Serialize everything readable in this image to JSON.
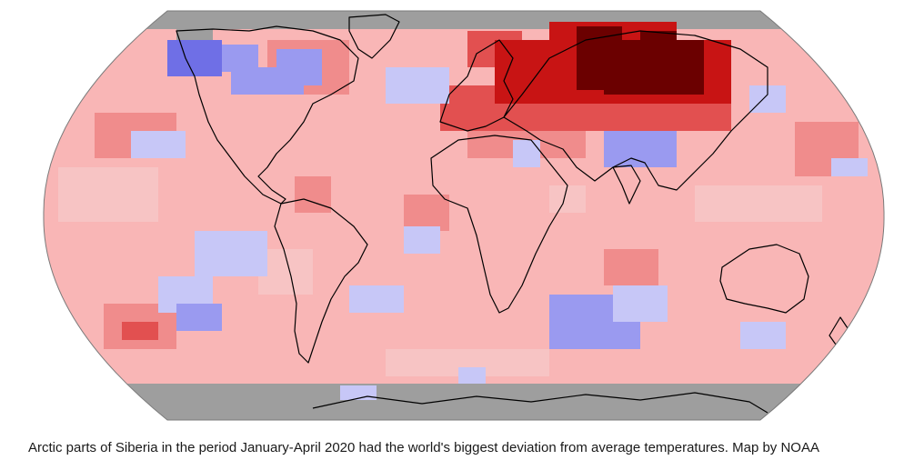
{
  "figure": {
    "caption": "Arctic parts of Siberia in the period January-April 2020 had the world's biggest deviation from average temperatures. Map by NOAA",
    "projection": "Robinson",
    "legend_shown": false,
    "colors": {
      "missing_data": "#9e9e9e",
      "ocean_base": "#f9b6b6",
      "warm_light": "#f7c4c4",
      "warm_medium": "#f08c8c",
      "warm_strong": "#e25050",
      "warm_very_strong": "#c81414",
      "warm_record": "#6b0000",
      "cool_light": "#c7c7f7",
      "cool_medium": "#9a9af0",
      "cool_strong": "#6f6fe6",
      "coastline": "#000000",
      "background": "#ffffff"
    }
  }
}
